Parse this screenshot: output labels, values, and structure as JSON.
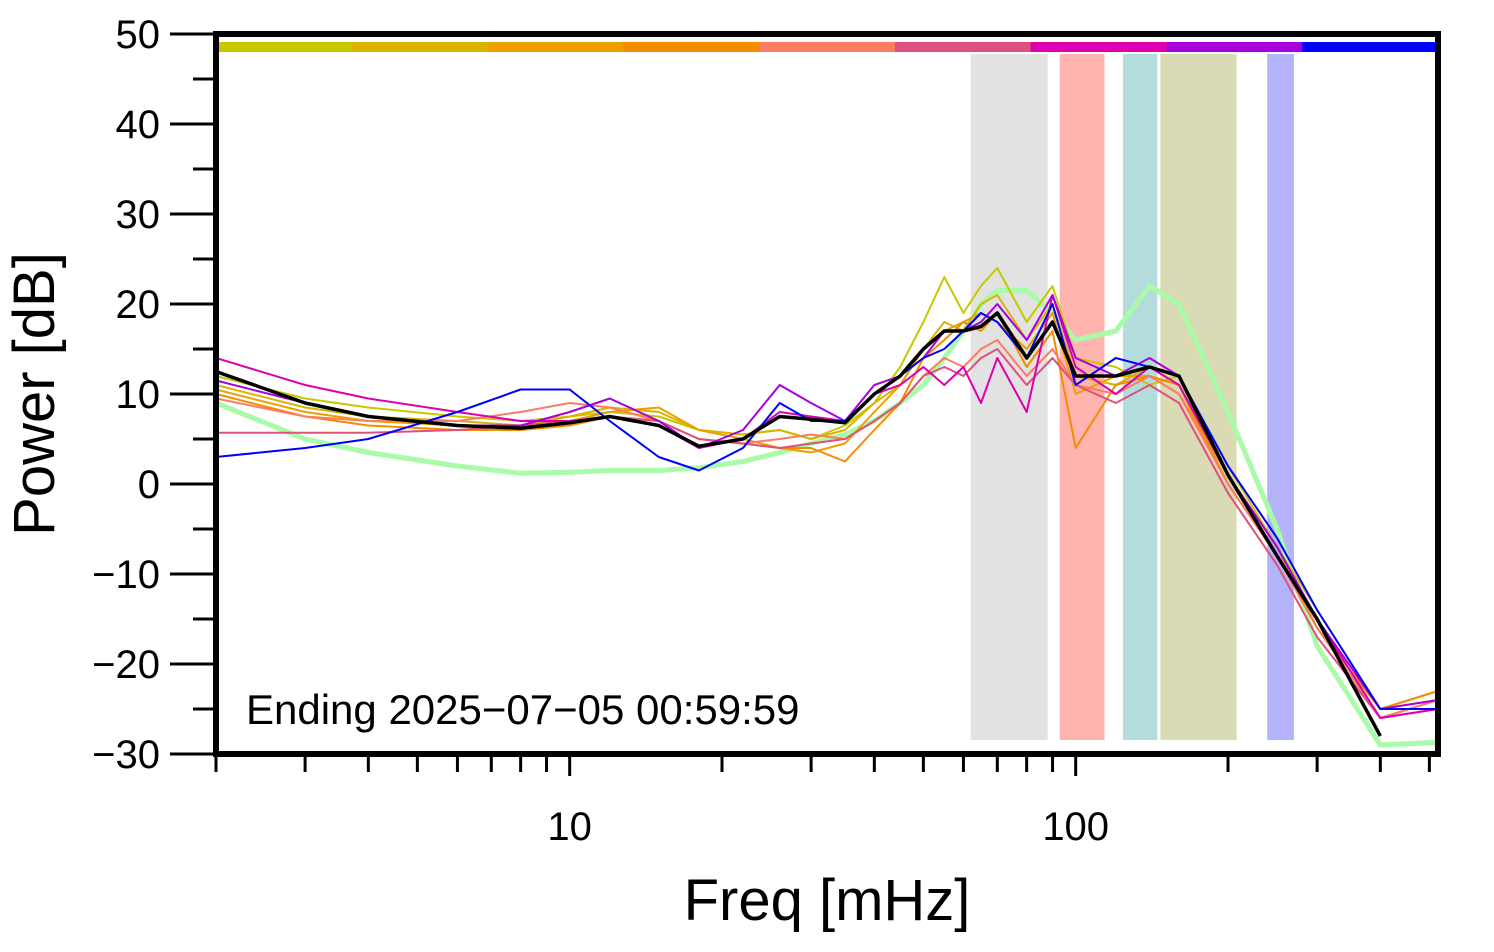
{
  "chart_data": {
    "type": "line",
    "x_label": "Freq [mHz]",
    "y_label": "Power [dB]",
    "annotation": "Ending 2025−07−05 00:59:59",
    "xscale": "log",
    "xlim": [
      2,
      520
    ],
    "xticks": [
      10,
      100
    ],
    "xminorticks": [
      2,
      3,
      4,
      5,
      6,
      7,
      8,
      9,
      20,
      30,
      40,
      50,
      60,
      70,
      80,
      90,
      200,
      300,
      400,
      500
    ],
    "ylim": [
      -30,
      50
    ],
    "yticks": [
      {
        "value": -30,
        "label": "−30"
      },
      {
        "value": -20,
        "label": "−20"
      },
      {
        "value": -10,
        "label": "−10"
      },
      0,
      10,
      20,
      30,
      40,
      50
    ],
    "yminorticks": [
      -25,
      -15,
      -5,
      5,
      15,
      25,
      35,
      45
    ],
    "color_bar": [
      "#c8c800",
      "#d8b400",
      "#eca000",
      "#f48c00",
      "#fc7c64",
      "#e0507c",
      "#dc00b0",
      "#a800dc",
      "#0000ff"
    ],
    "bands": [
      {
        "x": [
          62,
          88
        ],
        "color": "#e2e2e2"
      },
      {
        "x": [
          93,
          114
        ],
        "color": "#ffb4b0"
      },
      {
        "x": [
          124,
          145
        ],
        "color": "#b4dcdc"
      },
      {
        "x": [
          147,
          208
        ],
        "color": "#dadab4"
      },
      {
        "x": [
          239,
          270
        ],
        "color": "#b4b4fa"
      }
    ],
    "x": [
      2,
      3,
      4,
      6,
      8,
      10,
      12,
      15,
      18,
      22,
      26,
      30,
      35,
      40,
      45,
      50,
      55,
      60,
      65,
      70,
      80,
      90,
      100,
      120,
      140,
      160,
      200,
      250,
      300,
      400,
      520
    ],
    "series": [
      {
        "color": "#a8fca8",
        "width": 5,
        "values": [
          9,
          5,
          3.5,
          2,
          1.2,
          1.3,
          1.5,
          1.5,
          1.8,
          2.5,
          3.5,
          4.5,
          5.5,
          7,
          9,
          11,
          14,
          17,
          20,
          21.5,
          21.5,
          19,
          16,
          17,
          22,
          20,
          8,
          -5,
          -18,
          -29,
          -28.7
        ]
      },
      {
        "color": "#c8c800",
        "width": 2,
        "values": [
          12,
          9.5,
          8.5,
          7.5,
          7,
          7.5,
          8,
          7.5,
          6,
          5.5,
          6,
          5,
          6.5,
          9,
          13,
          18,
          23,
          19,
          22,
          24,
          18,
          22,
          14,
          13,
          11,
          12,
          2,
          -7,
          -14,
          -25,
          -24
        ]
      },
      {
        "color": "#d8b400",
        "width": 2,
        "values": [
          11,
          8.5,
          7.5,
          7,
          6.5,
          7.5,
          8.5,
          8,
          6,
          5.5,
          6,
          5,
          6,
          9,
          11,
          15,
          18,
          17,
          20,
          21,
          16,
          20,
          12,
          11,
          13,
          11,
          1,
          -7,
          -15,
          -26,
          -24
        ]
      },
      {
        "color": "#eca000",
        "width": 2,
        "values": [
          10.5,
          8,
          7,
          6.5,
          6.5,
          7,
          8,
          8.5,
          6,
          5,
          4,
          3.5,
          4.5,
          8,
          11,
          15,
          17,
          18,
          19,
          18,
          15,
          19,
          10,
          12,
          12,
          10,
          1,
          -7,
          -16,
          -25,
          -23
        ]
      },
      {
        "color": "#f48c00",
        "width": 2,
        "values": [
          10,
          7.5,
          6.5,
          6,
          6,
          6.5,
          7.5,
          7,
          5,
          4.5,
          4,
          4,
          2.5,
          6,
          9,
          14,
          16,
          18,
          17,
          19,
          13,
          17,
          4,
          11,
          12,
          11,
          0,
          -8,
          -16,
          -25,
          -23
        ]
      },
      {
        "color": "#fc7c64",
        "width": 2,
        "values": [
          9.5,
          7.5,
          7,
          7,
          8,
          9,
          8.5,
          7,
          5,
          4.5,
          5,
          5.5,
          5,
          7,
          9,
          12,
          14,
          13,
          15,
          16,
          12,
          15,
          11,
          10,
          12,
          10,
          0,
          -8,
          -16,
          -26,
          -24
        ]
      },
      {
        "color": "#e0507c",
        "width": 2,
        "values": [
          5.7,
          5.7,
          5.7,
          6,
          6.5,
          7,
          7.5,
          7,
          5,
          4.5,
          4,
          4.5,
          5,
          7,
          9,
          12,
          13,
          12,
          14,
          15,
          11,
          14,
          11,
          9,
          11,
          9,
          -1,
          -9,
          -17,
          -26,
          -25
        ]
      },
      {
        "color": "#dc00b0",
        "width": 2,
        "values": [
          14,
          11,
          9.5,
          8,
          7,
          7,
          7.5,
          6.5,
          4,
          5,
          8,
          7.5,
          7,
          10,
          11,
          13,
          11,
          13,
          9,
          14,
          8,
          21,
          13,
          10,
          13,
          11,
          1,
          -8,
          -15,
          -26,
          -25
        ]
      },
      {
        "color": "#a800dc",
        "width": 2,
        "values": [
          11.5,
          9,
          7.5,
          6.5,
          6.5,
          8,
          9.5,
          7,
          4,
          6,
          11,
          9,
          7,
          11,
          12,
          14,
          17,
          17,
          18,
          20,
          16,
          21,
          14,
          12,
          14,
          12,
          1,
          -7,
          -15,
          -25,
          -24
        ]
      },
      {
        "color": "#0000ff",
        "width": 2,
        "values": [
          3,
          4,
          5,
          8,
          10.5,
          10.5,
          7,
          3,
          1.5,
          4,
          9,
          7,
          7,
          10,
          12,
          14,
          15,
          17,
          19,
          18,
          14,
          20,
          11,
          14,
          13,
          12,
          2,
          -6,
          -14,
          -25,
          -25
        ]
      },
      {
        "color": "#000000",
        "width": 3.5,
        "values": [
          12.5,
          9,
          7.5,
          6.5,
          6.2,
          6.8,
          7.5,
          6.5,
          4.2,
          5,
          7.5,
          7.2,
          6.8,
          10,
          12,
          15,
          17,
          17,
          17.5,
          19,
          14,
          18,
          12,
          12,
          13,
          12,
          1,
          -8,
          -15,
          -28,
          null
        ]
      }
    ]
  }
}
